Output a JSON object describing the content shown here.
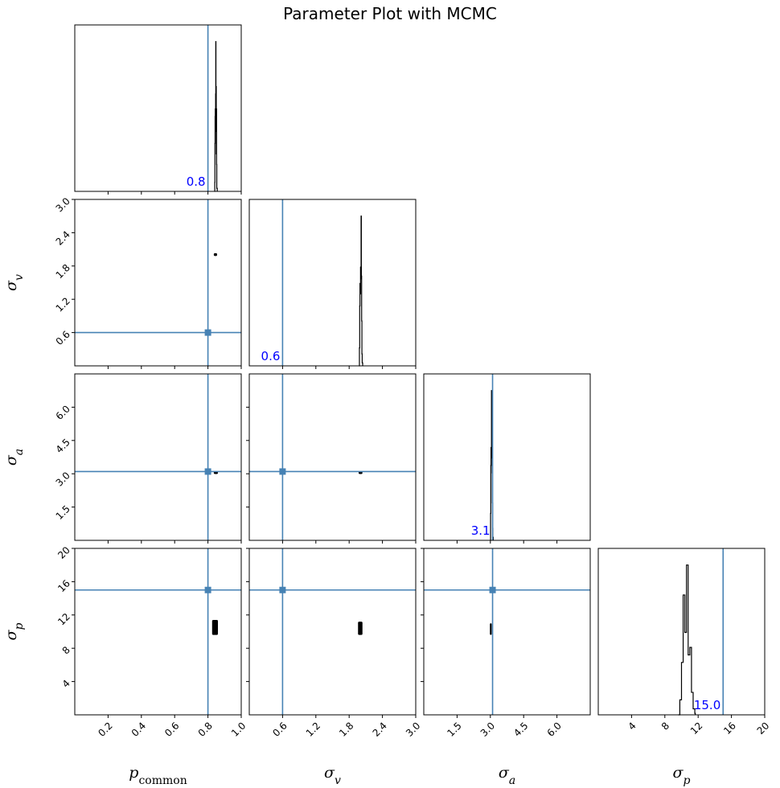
{
  "title": "Parameter Plot with MCMC",
  "colors": {
    "truth": "#4682b4",
    "sample": "#000000",
    "truth_text": "#0000ff"
  },
  "chart_data": {
    "type": "corner",
    "parameters": [
      {
        "key": "p_common",
        "label_main": "p",
        "label_sub": "common",
        "range": [
          0.0,
          1.0
        ],
        "ticks": [
          0.2,
          0.4,
          0.6,
          0.8,
          1.0
        ],
        "tick_labels": [
          "0.2",
          "0.4",
          "0.6",
          "0.8",
          "1.0"
        ],
        "truth": 0.8,
        "truth_label": "0.8",
        "hist_x": [
          0.84,
          0.841,
          0.842,
          0.843,
          0.844,
          0.845,
          0.846,
          0.847,
          0.848,
          0.849,
          0.85,
          0.851,
          0.852,
          0.853
        ],
        "hist_y": [
          0.0,
          0.06,
          0.32,
          0.5,
          0.55,
          0.4,
          0.65,
          1.0,
          0.62,
          0.7,
          0.25,
          0.55,
          0.18,
          0.02
        ]
      },
      {
        "key": "sigma_v",
        "label_main": "σ",
        "label_sub": "v",
        "range": [
          0.0,
          3.0
        ],
        "ticks": [
          0.6,
          1.2,
          1.8,
          2.4,
          3.0
        ],
        "tick_labels": [
          "0.6",
          "1.2",
          "1.8",
          "2.4",
          "3.0"
        ],
        "truth": 0.6,
        "truth_label": "0.6",
        "hist_x": [
          1.98,
          1.985,
          1.99,
          1.995,
          2.0,
          2.005,
          2.01,
          2.015,
          2.02,
          2.025,
          2.03,
          2.035
        ],
        "hist_y": [
          0.0,
          0.12,
          0.4,
          0.55,
          0.48,
          0.66,
          0.58,
          1.0,
          0.6,
          0.3,
          0.08,
          0.02
        ]
      },
      {
        "key": "sigma_a",
        "label_main": "σ",
        "label_sub": "a",
        "range": [
          0.0,
          7.5
        ],
        "ticks": [
          1.5,
          3.0,
          4.5,
          6.0
        ],
        "tick_labels": [
          "1.5",
          "3.0",
          "4.5",
          "6.0"
        ],
        "truth": 3.1,
        "truth_label": "3.1",
        "hist_x": [
          3.0,
          3.01,
          3.02,
          3.03,
          3.04,
          3.05,
          3.06,
          3.07,
          3.08,
          3.09,
          3.1,
          3.11
        ],
        "hist_y": [
          0.0,
          0.18,
          0.5,
          0.62,
          0.55,
          1.0,
          0.72,
          0.6,
          0.45,
          0.25,
          0.08,
          0.02
        ]
      },
      {
        "key": "sigma_p",
        "label_main": "σ",
        "label_sub": "p",
        "range": [
          0.0,
          20.0
        ],
        "ticks": [
          4,
          8,
          12,
          16,
          20
        ],
        "tick_labels": [
          "4",
          "8",
          "12",
          "16",
          "20"
        ],
        "truth": 15.0,
        "truth_label": "15.0",
        "hist_x": [
          9.6,
          9.8,
          10.0,
          10.2,
          10.4,
          10.6,
          10.8,
          11.0,
          11.2,
          11.4,
          11.6
        ],
        "hist_y": [
          0.0,
          0.1,
          0.35,
          0.8,
          0.55,
          1.0,
          0.4,
          0.45,
          0.15,
          0.04,
          0.01
        ]
      }
    ],
    "truth_points": [
      {
        "x": "p_common",
        "y": "sigma_v",
        "x_value": 0.8,
        "y_value": 0.6
      },
      {
        "x": "p_common",
        "y": "sigma_a",
        "x_value": 0.8,
        "y_value": 3.1
      },
      {
        "x": "sigma_v",
        "y": "sigma_a",
        "x_value": 0.6,
        "y_value": 3.1
      },
      {
        "x": "p_common",
        "y": "sigma_p",
        "x_value": 0.8,
        "y_value": 15.0
      },
      {
        "x": "sigma_v",
        "y": "sigma_p",
        "x_value": 0.6,
        "y_value": 15.0
      },
      {
        "x": "sigma_a",
        "y": "sigma_p",
        "x_value": 3.1,
        "y_value": 15.0
      }
    ],
    "sample_clusters": [
      {
        "x": "p_common",
        "y": "sigma_v",
        "x_range": [
          0.835,
          0.855
        ],
        "y_range": [
          1.98,
          2.03
        ]
      },
      {
        "x": "p_common",
        "y": "sigma_a",
        "x_range": [
          0.835,
          0.86
        ],
        "y_range": [
          3.0,
          3.1
        ]
      },
      {
        "x": "sigma_v",
        "y": "sigma_a",
        "x_range": [
          1.97,
          2.04
        ],
        "y_range": [
          3.0,
          3.1
        ]
      },
      {
        "x": "p_common",
        "y": "sigma_p",
        "x_range": [
          0.825,
          0.86
        ],
        "y_range": [
          9.6,
          11.4
        ]
      },
      {
        "x": "sigma_v",
        "y": "sigma_p",
        "x_range": [
          1.96,
          2.04
        ],
        "y_range": [
          9.6,
          11.2
        ]
      },
      {
        "x": "sigma_a",
        "y": "sigma_p",
        "x_range": [
          2.98,
          3.06
        ],
        "y_range": [
          9.6,
          11.0
        ]
      }
    ],
    "grid": false
  }
}
